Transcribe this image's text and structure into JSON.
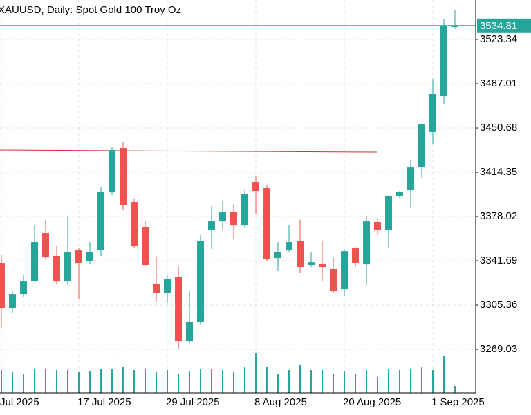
{
  "chart_data": {
    "type": "candlestick",
    "title": "XAUUSD, Daily:  Spot Gold 100 Troy Oz",
    "categories": [
      "Jul 2025",
      null,
      null,
      null,
      null,
      null,
      null,
      "17 Jul 2025",
      null,
      null,
      null,
      null,
      null,
      null,
      null,
      "29 Jul 2025",
      null,
      null,
      null,
      null,
      null,
      null,
      null,
      "8 Aug 2025",
      null,
      null,
      null,
      null,
      null,
      null,
      null,
      "20 Aug 2025",
      null,
      null,
      null,
      null,
      null,
      null,
      null,
      "1 Sep 2025",
      null,
      null
    ],
    "open": [
      3340.0,
      3303.1,
      3314.4,
      3325.2,
      3364.4,
      3345.7,
      3325.2,
      3350.2,
      3341.7,
      3350.2,
      3397.9,
      3434.2,
      3389.9,
      3369.5,
      3322.9,
      3315.6,
      3328.1,
      3275.8,
      3291.2,
      3367.2,
      3374.0,
      3382.0,
      3370.6,
      3406.4,
      3401.3,
      3343.9,
      3350.2,
      3358.1,
      3338.3,
      3339.4,
      3334.9,
      3318.4,
      3351.9,
      3338.8,
      3373.5,
      3366.7,
      3394.5,
      3399.6,
      3418.3,
      3447.3,
      3476.8,
      3533.6
    ],
    "high": [
      3346.8,
      3317.3,
      3330.3,
      3371.2,
      3375.2,
      3354.2,
      3378.6,
      3352.5,
      3357.0,
      3402.4,
      3434.8,
      3439.3,
      3392.2,
      3374.0,
      3344.5,
      3330.3,
      3337.1,
      3317.3,
      3362.7,
      3386.5,
      3391.1,
      3388.2,
      3399.6,
      3410.9,
      3403.6,
      3357.0,
      3371.2,
      3375.2,
      3349.1,
      3358.1,
      3344.5,
      3351.3,
      3353.0,
      3378.6,
      3376.3,
      3395.6,
      3399.0,
      3424.0,
      3454.6,
      3491.0,
      3539.8,
      3547.7
    ],
    "low": [
      3286.6,
      3299.1,
      3311.6,
      3324.1,
      3342.8,
      3322.9,
      3321.8,
      3310.5,
      3338.8,
      3345.7,
      3395.6,
      3383.1,
      3352.5,
      3337.1,
      3308.2,
      3307.0,
      3269.6,
      3274.1,
      3288.9,
      3351.3,
      3366.7,
      3359.8,
      3368.4,
      3379.7,
      3341.1,
      3333.2,
      3348.5,
      3331.5,
      3336.6,
      3325.2,
      3315.6,
      3312.7,
      3336.6,
      3321.8,
      3363.8,
      3352.5,
      3393.3,
      3385.4,
      3409.2,
      3437.6,
      3470.5,
      3531.9
    ],
    "close": [
      3303.1,
      3314.4,
      3325.2,
      3357.0,
      3344.5,
      3325.2,
      3348.5,
      3340.0,
      3349.1,
      3397.9,
      3432.5,
      3387.7,
      3353.6,
      3338.3,
      3315.6,
      3326.9,
      3275.8,
      3291.2,
      3358.1,
      3374.0,
      3381.4,
      3370.6,
      3396.7,
      3399.0,
      3343.4,
      3349.1,
      3357.0,
      3336.6,
      3340.5,
      3336.6,
      3316.7,
      3349.6,
      3340.0,
      3374.0,
      3366.7,
      3394.5,
      3397.9,
      3418.3,
      3453.5,
      3478.5,
      3534.7,
      3534.81
    ],
    "volume": [
      33,
      30,
      28,
      35,
      35,
      33,
      33,
      30,
      31,
      35,
      35,
      38,
      33,
      35,
      30,
      33,
      28,
      31,
      35,
      35,
      33,
      30,
      38,
      58,
      38,
      28,
      33,
      40,
      33,
      33,
      28,
      31,
      28,
      33,
      23,
      35,
      33,
      35,
      38,
      33,
      53,
      10
    ],
    "vlim": [
      0,
      568
    ],
    "ylim": [
      3233.3,
      3555.7
    ],
    "yticks": [
      3269.03,
      3305.36,
      3341.69,
      3378.02,
      3414.35,
      3450.68,
      3487.01,
      3523.34
    ],
    "grid": true,
    "up_color": "#26a69a",
    "down_color": "#ef5350",
    "volume_color": "#26a69a",
    "last_price_color": "#26a69a",
    "trend_line": {
      "values": [
        3432.5,
        3430.8
      ],
      "x": [
        0,
        34
      ],
      "color": "#d32f2f"
    }
  }
}
